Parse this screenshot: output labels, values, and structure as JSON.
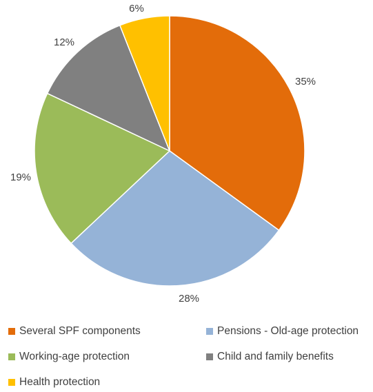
{
  "chart_data": {
    "type": "pie",
    "title": "",
    "slices": [
      {
        "name": "Several SPF components",
        "value": 35,
        "label": "35%",
        "color": "#E36C0A"
      },
      {
        "name": "Pensions - Old-age protection",
        "value": 28,
        "label": "28%",
        "color": "#95B3D7"
      },
      {
        "name": "Working-age protection",
        "value": 19,
        "label": "19%",
        "color": "#9BBB59"
      },
      {
        "name": "Child and family benefits",
        "value": 12,
        "label": "12%",
        "color": "#808080"
      },
      {
        "name": "Health protection",
        "value": 6,
        "label": "6%",
        "color": "#FFC000"
      }
    ],
    "start_angle_deg": 0,
    "direction": "clockwise",
    "legend_position": "bottom"
  }
}
